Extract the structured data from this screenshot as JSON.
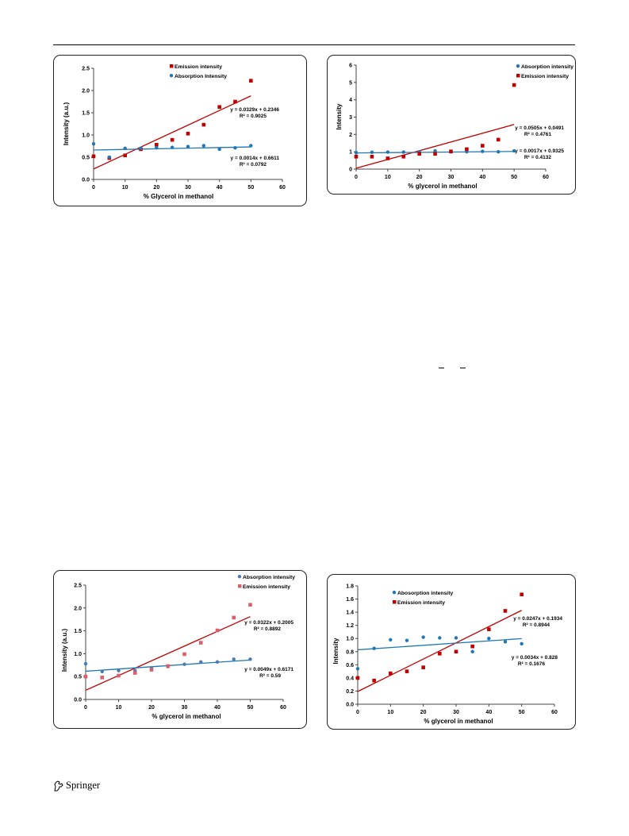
{
  "footer": {
    "publisher": "Springer"
  },
  "colors": {
    "red": "#c00000",
    "blue": "#1f77b4",
    "lightred": "#d9606a",
    "steelblue": "#4a7ab5"
  },
  "chart_data": [
    {
      "type": "scatter",
      "xlabel": "% Glycerol in methanol",
      "ylabel": "Intensity (a.u.)",
      "xlim": [
        0,
        60
      ],
      "ylim": [
        0,
        2.5
      ],
      "xticks": [
        0,
        10,
        20,
        30,
        40,
        50,
        60
      ],
      "yticks": [
        0,
        0.5,
        1,
        1.5,
        2,
        2.5
      ],
      "ydec": 1,
      "legend": "top-center",
      "series": [
        {
          "name": "Emission intensity",
          "color": "#c00000",
          "marker": "square",
          "x": [
            0,
            5,
            10,
            15,
            20,
            25,
            30,
            35,
            40,
            45,
            50
          ],
          "y": [
            0.52,
            0.48,
            0.54,
            0.68,
            0.78,
            0.89,
            1.03,
            1.23,
            1.63,
            1.75,
            2.22
          ]
        },
        {
          "name": "Absorption Intensity",
          "color": "#1f77b4",
          "marker": "circle",
          "x": [
            0,
            5,
            10,
            15,
            20,
            25,
            30,
            35,
            40,
            45,
            50
          ],
          "y": [
            0.8,
            0.5,
            0.7,
            0.7,
            0.71,
            0.72,
            0.74,
            0.76,
            0.68,
            0.71,
            0.76
          ]
        }
      ],
      "trendlines": [
        {
          "slope": 0.0329,
          "intercept": 0.2346,
          "color": "#c00000",
          "equation": "y = 0.0329x + 0.2346",
          "r2": "R² = 0.9025"
        },
        {
          "slope": 0.0014,
          "intercept": 0.6611,
          "color": "#1f77b4",
          "equation": "y = 0.0014x + 0.6611",
          "r2": "R² = 0.0792"
        }
      ]
    },
    {
      "type": "scatter",
      "xlabel": "% glycerol in methanol",
      "ylabel": "Intensity",
      "xlim": [
        0,
        60
      ],
      "ylim": [
        0,
        6
      ],
      "xticks": [
        0,
        10,
        20,
        30,
        40,
        50,
        60
      ],
      "yticks": [
        0,
        1,
        2,
        3,
        4,
        5,
        6
      ],
      "ydec": 0,
      "legend": "top-right",
      "series": [
        {
          "name": "Absorption intensity",
          "color": "#1f77b4",
          "marker": "circle",
          "x": [
            0,
            5,
            10,
            15,
            20,
            25,
            30,
            35,
            40,
            45,
            50
          ],
          "y": [
            0.95,
            0.97,
            0.98,
            0.98,
            1.0,
            1.05,
            1.0,
            1.0,
            1.02,
            1.0,
            1.05
          ]
        },
        {
          "name": "Emission intensity",
          "color": "#c00000",
          "marker": "square",
          "x": [
            0,
            5,
            10,
            15,
            20,
            25,
            30,
            35,
            40,
            45,
            50
          ],
          "y": [
            0.72,
            0.72,
            0.62,
            0.72,
            0.88,
            0.88,
            1.02,
            1.15,
            1.35,
            1.7,
            4.85
          ]
        }
      ],
      "trendlines": [
        {
          "slope": 0.0505,
          "intercept": 0.0491,
          "color": "#c00000",
          "equation": "y = 0.0505x + 0.0491",
          "r2": "R² = 0.4761"
        },
        {
          "slope": 0.0017,
          "intercept": 0.9325,
          "color": "#1f77b4",
          "equation": "y = 0.0017x + 0.9325",
          "r2": "R² = 0.4132"
        }
      ]
    },
    {
      "type": "scatter",
      "xlabel": "%  glycerol in methanol",
      "ylabel": "Intensity (a.u.)",
      "xlim": [
        0,
        60
      ],
      "ylim": [
        0,
        2.5
      ],
      "xticks": [
        0,
        10,
        20,
        30,
        40,
        50,
        60
      ],
      "yticks": [
        0,
        0.5,
        1,
        1.5,
        2,
        2.5
      ],
      "ydec": 1,
      "legend": "top-right",
      "series": [
        {
          "name": "Absorption intensity",
          "color": "#4a7ab5",
          "marker": "circle",
          "x": [
            0,
            5,
            10,
            15,
            20,
            25,
            30,
            35,
            40,
            45,
            50
          ],
          "y": [
            0.78,
            0.61,
            0.63,
            0.63,
            0.68,
            0.72,
            0.77,
            0.82,
            0.82,
            0.88,
            0.88
          ]
        },
        {
          "name": "Emission intensity",
          "color": "#d9606a",
          "marker": "square",
          "x": [
            0,
            5,
            10,
            15,
            20,
            25,
            30,
            35,
            40,
            45,
            50
          ],
          "y": [
            0.5,
            0.48,
            0.52,
            0.58,
            0.65,
            0.73,
            0.99,
            1.24,
            1.51,
            1.79,
            2.07
          ]
        }
      ],
      "trendlines": [
        {
          "slope": 0.0322,
          "intercept": 0.2005,
          "color": "#c00000",
          "equation": "y = 0.0322x + 0.2005",
          "r2": "R² = 0.8892"
        },
        {
          "slope": 0.0049,
          "intercept": 0.6171,
          "color": "#1f77b4",
          "equation": "y = 0.0049x + 0.6171",
          "r2": "R² = 0.59"
        }
      ]
    },
    {
      "type": "scatter",
      "xlabel": "% glycerol in methanol",
      "ylabel": "Intensity",
      "xlim": [
        0,
        60
      ],
      "ylim": [
        0,
        1.8
      ],
      "xticks": [
        0,
        10,
        20,
        30,
        40,
        50,
        60
      ],
      "yticks": [
        0,
        0.2,
        0.4,
        0.6,
        0.8,
        1.0,
        1.2,
        1.4,
        1.6,
        1.8
      ],
      "ydec": 1,
      "legend": "top-left",
      "series": [
        {
          "name": "Abosorption intensity",
          "color": "#1f77b4",
          "marker": "circle",
          "x": [
            0,
            5,
            10,
            15,
            20,
            25,
            30,
            35,
            40,
            45,
            50
          ],
          "y": [
            0.54,
            0.85,
            0.98,
            0.97,
            1.02,
            1.01,
            1.01,
            0.8,
            1.0,
            0.95,
            0.92
          ]
        },
        {
          "name": "Emission intensity",
          "color": "#c00000",
          "marker": "square",
          "x": [
            0,
            5,
            10,
            15,
            20,
            25,
            30,
            35,
            40,
            45,
            50
          ],
          "y": [
            0.4,
            0.36,
            0.47,
            0.5,
            0.56,
            0.77,
            0.8,
            0.88,
            1.14,
            1.42,
            1.67
          ]
        }
      ],
      "trendlines": [
        {
          "slope": 0.0247,
          "intercept": 0.1934,
          "color": "#c00000",
          "equation": "y = 0.0247x + 0.1934",
          "r2": "R² = 0.8944"
        },
        {
          "slope": 0.0034,
          "intercept": 0.828,
          "color": "#1f77b4",
          "equation": "y = 0.0034x + 0.828",
          "r2": "R² = 0.1676"
        }
      ]
    }
  ]
}
